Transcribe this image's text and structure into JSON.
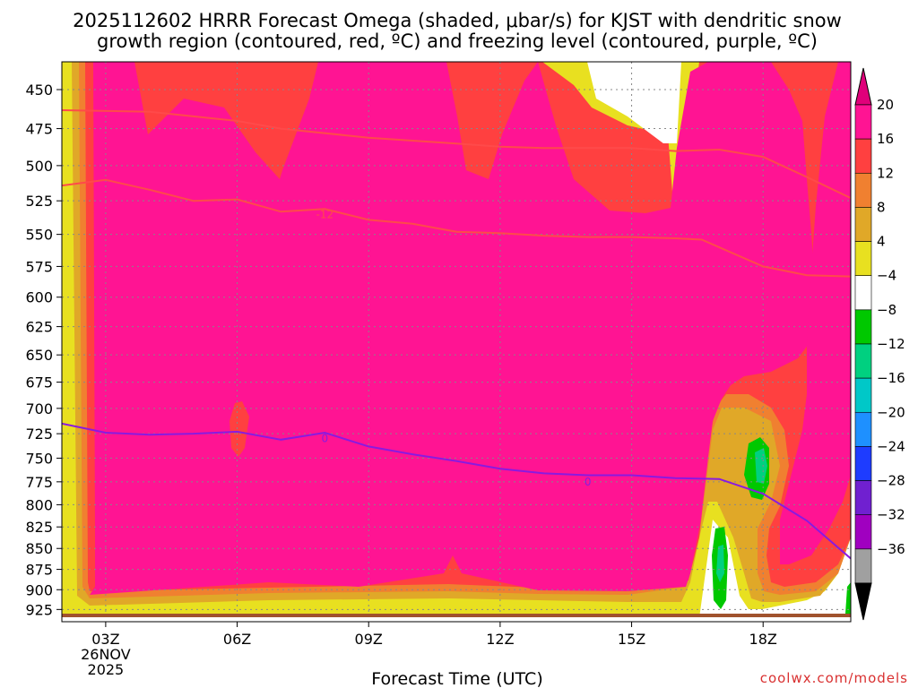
{
  "title": {
    "line1": "2025112602 HRRR Forecast Omega (shaded, μbar/s) for KJST with dendritic snow",
    "line2": "growth region (contoured, red, ºC) and freezing level (contoured, purple, ºC)"
  },
  "credit": "coolwx.com/models",
  "chart_data": {
    "type": "heatmap",
    "title": "2025112602 HRRR Forecast Omega (shaded, μbar/s) for KJST with dendritic snow growth region (contoured, red, ºC) and freezing level (contoured, purple, ºC)",
    "xlabel": "Forecast Time (UTC)",
    "ylabel": "",
    "x_ticks": [
      "03Z",
      "06Z",
      "09Z",
      "12Z",
      "15Z",
      "18Z"
    ],
    "x_tick_hours": [
      3,
      6,
      9,
      12,
      15,
      18
    ],
    "x_date_label": [
      "26NOV",
      "2025"
    ],
    "xlim": [
      2,
      20
    ],
    "y_ticks": [
      450,
      475,
      500,
      525,
      550,
      575,
      600,
      625,
      650,
      675,
      700,
      725,
      750,
      775,
      800,
      825,
      850,
      875,
      900,
      925
    ],
    "ylim": [
      433,
      935
    ],
    "y_scale": "log-pressure",
    "colorbar": {
      "labels": [
        "20",
        "16",
        "12",
        "8",
        "4",
        "−4",
        "−8",
        "−12",
        "−16",
        "−20",
        "−24",
        "−28",
        "−32",
        "−36"
      ],
      "bins": [
        {
          "color": "#ff1493"
        },
        {
          "color": "#ff4040"
        },
        {
          "color": "#f08030"
        },
        {
          "color": "#e0a828"
        },
        {
          "color": "#e8e020"
        },
        {
          "color": "#ffffff"
        },
        {
          "color": "#00c800"
        },
        {
          "color": "#00d080"
        },
        {
          "color": "#00c8c8"
        },
        {
          "color": "#1e90ff"
        },
        {
          "color": "#1e3cff"
        },
        {
          "color": "#7020d0"
        },
        {
          "color": "#a000c0"
        },
        {
          "color": "#a0a0a0"
        }
      ],
      "arrow_top_color": "#e0007a",
      "arrow_bottom_color": "#000000"
    },
    "contours": [
      {
        "name": "-12",
        "color": "#ff4a4a",
        "label": "-12",
        "label_at": [
          8,
          535
        ],
        "points": [
          [
            2,
            514
          ],
          [
            3,
            510
          ],
          [
            4,
            517
          ],
          [
            5,
            525
          ],
          [
            6,
            524
          ],
          [
            7,
            533
          ],
          [
            8,
            531
          ],
          [
            9,
            539
          ],
          [
            10,
            542
          ],
          [
            11,
            548
          ],
          [
            12,
            549
          ],
          [
            13,
            551
          ],
          [
            14,
            552
          ],
          [
            15,
            552
          ],
          [
            16,
            553
          ],
          [
            16.6,
            554
          ],
          [
            17,
            560
          ],
          [
            18,
            575
          ],
          [
            19,
            582
          ],
          [
            20,
            583
          ]
        ]
      },
      {
        "name": "-18",
        "color": "#ff4a4a",
        "label": "",
        "points": [
          [
            2,
            463
          ],
          [
            4,
            464
          ],
          [
            5,
            467
          ],
          [
            6,
            470
          ],
          [
            7,
            475
          ],
          [
            9,
            481
          ],
          [
            11,
            485
          ],
          [
            12,
            487
          ],
          [
            13,
            488
          ],
          [
            15,
            488
          ],
          [
            16,
            490
          ],
          [
            17,
            489
          ],
          [
            18,
            494
          ],
          [
            19,
            508
          ],
          [
            20,
            523
          ]
        ]
      },
      {
        "name": "0",
        "color": "#8a1ae0",
        "label": "0",
        "label_at": [
          14,
          775
        ],
        "label2": "0",
        "label2_at": [
          8,
          730
        ],
        "points": [
          [
            2,
            715
          ],
          [
            3,
            724
          ],
          [
            4,
            726
          ],
          [
            5,
            725
          ],
          [
            6,
            723
          ],
          [
            7,
            731
          ],
          [
            8,
            724
          ],
          [
            9,
            738
          ],
          [
            10,
            746
          ],
          [
            11,
            753
          ],
          [
            12,
            761
          ],
          [
            13,
            766
          ],
          [
            14,
            768
          ],
          [
            15,
            768
          ],
          [
            16,
            771
          ],
          [
            17,
            772
          ],
          [
            18,
            788
          ],
          [
            19,
            818
          ],
          [
            20,
            862
          ]
        ]
      }
    ],
    "regions": [
      {
        "value": 20,
        "label": "strong ascent 450-920 hPa, 02Z-20Z"
      },
      {
        "value": -8,
        "label": "weak descent near 18Z 730-790 hPa"
      },
      {
        "value": -8,
        "label": "weak descent near 17Z 840-910 hPa"
      }
    ],
    "grid": true
  }
}
